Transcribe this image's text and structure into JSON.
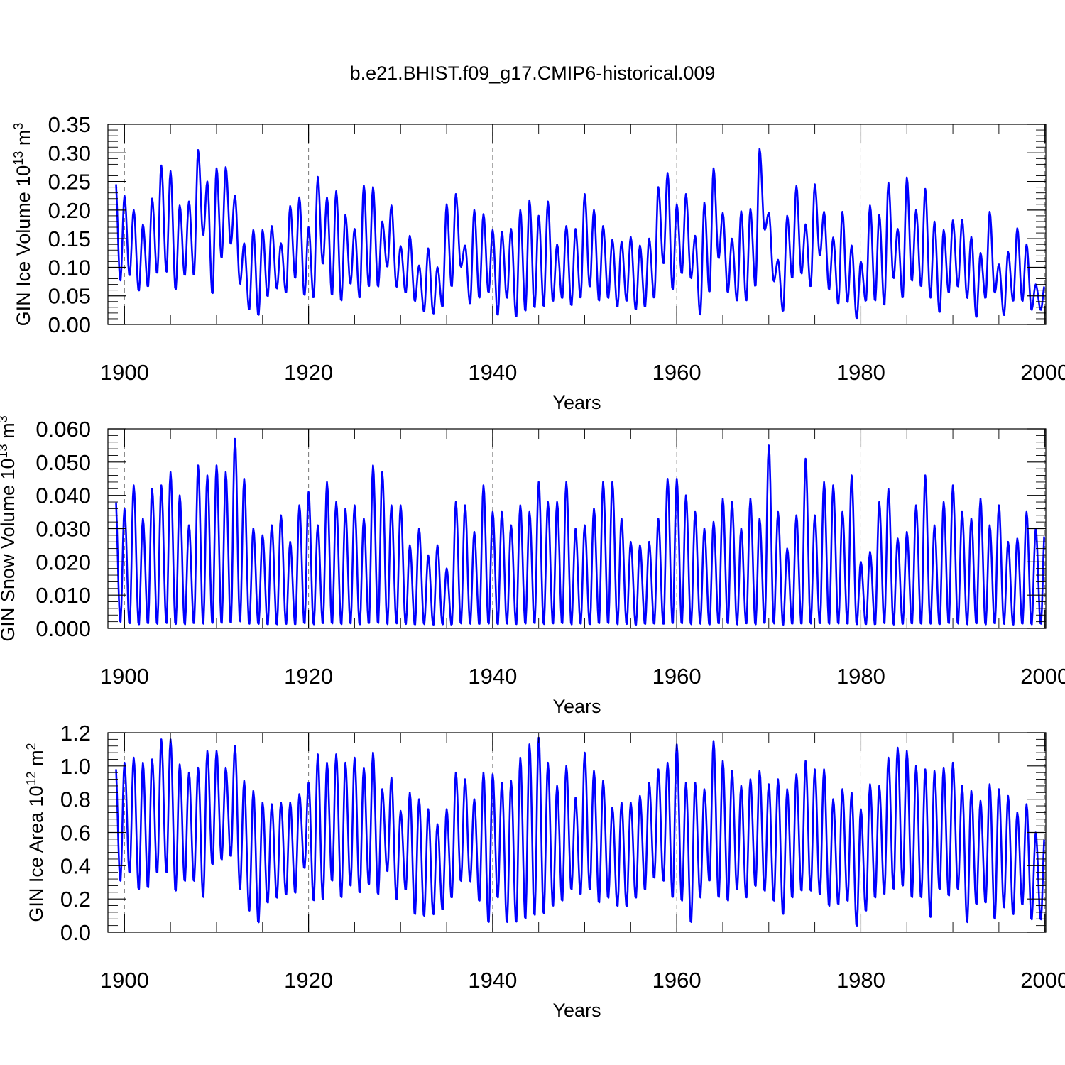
{
  "title": "b.e21.BHIST.f09_g17.CMIP6-historical.009",
  "colors": {
    "series": "#0000ff",
    "axes": "#000000",
    "grid": "#777777"
  },
  "chart_data": [
    {
      "type": "line",
      "ylabel_main": "GIN Ice Volume 10",
      "ylabel_exp1": "13",
      "ylabel_unit": " m",
      "ylabel_exp2": "3",
      "xlabel": "Years",
      "xlim": [
        1898.2,
        2000.1
      ],
      "x_ticks": [
        1900,
        1920,
        1940,
        1960,
        1980,
        2000
      ],
      "x_tick_labels": [
        "1900",
        "1920",
        "1940",
        "1960",
        "1980",
        "2000"
      ],
      "ylim": [
        0,
        0.35
      ],
      "y_ticks": [
        0,
        0.05,
        0.1,
        0.15,
        0.2,
        0.25,
        0.3,
        0.35
      ],
      "y_tick_labels": [
        "0.00",
        "0.05",
        "0.10",
        "0.15",
        "0.20",
        "0.25",
        "0.30",
        "0.35"
      ],
      "grid_x": [
        1900,
        1920,
        1940,
        1960,
        1980,
        2000
      ],
      "series": [
        {
          "name": "GIN Ice Volume",
          "annual_max": [
            0.255,
            0.225,
            0.2,
            0.175,
            0.22,
            0.278,
            0.268,
            0.208,
            0.215,
            0.305,
            0.25,
            0.273,
            0.275,
            0.225,
            0.142,
            0.165,
            0.165,
            0.172,
            0.142,
            0.207,
            0.222,
            0.17,
            0.258,
            0.222,
            0.233,
            0.192,
            0.167,
            0.243,
            0.24,
            0.18,
            0.208,
            0.137,
            0.155,
            0.103,
            0.133,
            0.1,
            0.21,
            0.228,
            0.138,
            0.2,
            0.193,
            0.165,
            0.162,
            0.167,
            0.2,
            0.217,
            0.19,
            0.215,
            0.14,
            0.172,
            0.167,
            0.228,
            0.2,
            0.172,
            0.148,
            0.145,
            0.153,
            0.138,
            0.15,
            0.24,
            0.265,
            0.21,
            0.228,
            0.155,
            0.213,
            0.273,
            0.195,
            0.15,
            0.198,
            0.202,
            0.307,
            0.195,
            0.113,
            0.19,
            0.242,
            0.175,
            0.245,
            0.197,
            0.152,
            0.197,
            0.138,
            0.11,
            0.208,
            0.192,
            0.248,
            0.167,
            0.257,
            0.2,
            0.237,
            0.18,
            0.165,
            0.182,
            0.183,
            0.153,
            0.125,
            0.197,
            0.105,
            0.127,
            0.168,
            0.14,
            0.07
          ],
          "annual_min": [
            0.075,
            0.085,
            0.058,
            0.065,
            0.088,
            0.09,
            0.06,
            0.085,
            0.085,
            0.155,
            0.052,
            0.115,
            0.14,
            0.07,
            0.025,
            0.015,
            0.048,
            0.062,
            0.055,
            0.08,
            0.05,
            0.045,
            0.105,
            0.05,
            0.04,
            0.07,
            0.045,
            0.065,
            0.065,
            0.1,
            0.065,
            0.055,
            0.04,
            0.022,
            0.018,
            0.03,
            0.065,
            0.1,
            0.035,
            0.045,
            0.055,
            0.015,
            0.045,
            0.012,
            0.022,
            0.028,
            0.03,
            0.04,
            0.045,
            0.032,
            0.045,
            0.065,
            0.04,
            0.045,
            0.03,
            0.04,
            0.025,
            0.03,
            0.045,
            0.105,
            0.06,
            0.088,
            0.08,
            0.015,
            0.055,
            0.115,
            0.055,
            0.04,
            0.04,
            0.065,
            0.165,
            0.075,
            0.022,
            0.08,
            0.088,
            0.065,
            0.12,
            0.06,
            0.035,
            0.038,
            0.01,
            0.04,
            0.04,
            0.032,
            0.08,
            0.045,
            0.075,
            0.065,
            0.045,
            0.02,
            0.055,
            0.065,
            0.045,
            0.012,
            0.045,
            0.055,
            0.015,
            0.04,
            0.04,
            0.025,
            0.025
          ]
        }
      ]
    },
    {
      "type": "line",
      "ylabel_main": "GIN Snow Volume 10",
      "ylabel_exp1": "13",
      "ylabel_unit": " m",
      "ylabel_exp2": "3",
      "xlabel": "Years",
      "xlim": [
        1898.2,
        2000.1
      ],
      "x_ticks": [
        1900,
        1920,
        1940,
        1960,
        1980,
        2000
      ],
      "x_tick_labels": [
        "1900",
        "1920",
        "1940",
        "1960",
        "1980",
        "2000"
      ],
      "ylim": [
        0,
        0.06
      ],
      "y_ticks": [
        0,
        0.01,
        0.02,
        0.03,
        0.04,
        0.05,
        0.06
      ],
      "y_tick_labels": [
        "0.000",
        "0.010",
        "0.020",
        "0.030",
        "0.040",
        "0.050",
        "0.060"
      ],
      "grid_x": [
        1900,
        1920,
        1940,
        1960,
        1980,
        2000
      ],
      "series": [
        {
          "name": "GIN Snow Volume",
          "annual_max": [
            0.04,
            0.036,
            0.043,
            0.033,
            0.042,
            0.043,
            0.047,
            0.04,
            0.031,
            0.049,
            0.046,
            0.049,
            0.047,
            0.057,
            0.045,
            0.03,
            0.028,
            0.031,
            0.034,
            0.026,
            0.037,
            0.041,
            0.031,
            0.044,
            0.038,
            0.036,
            0.037,
            0.033,
            0.049,
            0.047,
            0.037,
            0.037,
            0.025,
            0.03,
            0.022,
            0.025,
            0.018,
            0.038,
            0.037,
            0.029,
            0.043,
            0.035,
            0.035,
            0.031,
            0.037,
            0.035,
            0.044,
            0.038,
            0.038,
            0.044,
            0.03,
            0.031,
            0.036,
            0.044,
            0.044,
            0.033,
            0.026,
            0.025,
            0.026,
            0.033,
            0.045,
            0.045,
            0.04,
            0.035,
            0.03,
            0.032,
            0.039,
            0.038,
            0.03,
            0.039,
            0.033,
            0.055,
            0.035,
            0.024,
            0.034,
            0.051,
            0.034,
            0.044,
            0.043,
            0.035,
            0.046,
            0.02,
            0.023,
            0.038,
            0.042,
            0.027,
            0.029,
            0.037,
            0.046,
            0.031,
            0.038,
            0.043,
            0.035,
            0.033,
            0.039,
            0.031,
            0.037,
            0.026,
            0.027,
            0.035,
            0.03
          ],
          "annual_min": [
            0.0015,
            0.001,
            0.0008,
            0.001,
            0.0008,
            0.001,
            0.0008,
            0.0008,
            0.001,
            0.0008,
            0.001,
            0.001,
            0.001,
            0.0015,
            0.001,
            0.001,
            0.0008,
            0.0008,
            0.001,
            0.0008,
            0.001,
            0.0008,
            0.001,
            0.001,
            0.0008,
            0.001,
            0.0008,
            0.001,
            0.001,
            0.0008,
            0.001,
            0.001,
            0.0008,
            0.001,
            0.0008,
            0.001,
            0.0008,
            0.001,
            0.001,
            0.0008,
            0.001,
            0.0008,
            0.001,
            0.0008,
            0.001,
            0.001,
            0.0008,
            0.001,
            0.001,
            0.0008,
            0.001,
            0.0008,
            0.001,
            0.001,
            0.0008,
            0.001,
            0.0008,
            0.001,
            0.001,
            0.0008,
            0.001,
            0.001,
            0.0008,
            0.001,
            0.0008,
            0.001,
            0.001,
            0.0008,
            0.001,
            0.0008,
            0.001,
            0.001,
            0.0008,
            0.001,
            0.0008,
            0.001,
            0.001,
            0.0008,
            0.001,
            0.0008,
            0.001,
            0.001,
            0.0008,
            0.001,
            0.0008,
            0.001,
            0.001,
            0.0008,
            0.001,
            0.0008,
            0.001,
            0.001,
            0.0008,
            0.001,
            0.0008,
            0.001,
            0.001,
            0.0008,
            0.001,
            0.0008,
            0.001
          ]
        }
      ]
    },
    {
      "type": "line",
      "ylabel_main": "GIN Ice Area 10",
      "ylabel_exp1": "12",
      "ylabel_unit": " m",
      "ylabel_exp2": "2",
      "xlabel": "Years",
      "xlim": [
        1898.2,
        2000.1
      ],
      "x_ticks": [
        1900,
        1920,
        1940,
        1960,
        1980,
        2000
      ],
      "x_tick_labels": [
        "1900",
        "1920",
        "1940",
        "1960",
        "1980",
        "2000"
      ],
      "ylim": [
        0,
        1.2
      ],
      "y_ticks": [
        0,
        0.2,
        0.4,
        0.6,
        0.8,
        1.0,
        1.2
      ],
      "y_tick_labels": [
        "0.0",
        "0.2",
        "0.4",
        "0.6",
        "0.8",
        "1.0",
        "1.2"
      ],
      "grid_x": [
        1900,
        1920,
        1940,
        1960,
        1980,
        2000
      ],
      "series": [
        {
          "name": "GIN Ice Area",
          "annual_max": [
            1.02,
            1.02,
            1.05,
            1.02,
            1.04,
            1.16,
            1.16,
            1.01,
            0.96,
            0.99,
            1.09,
            1.09,
            0.99,
            1.12,
            0.91,
            0.85,
            0.78,
            0.77,
            0.78,
            0.78,
            0.83,
            0.9,
            1.07,
            1.02,
            1.07,
            1.02,
            1.05,
            0.99,
            1.08,
            0.86,
            0.93,
            0.73,
            0.84,
            0.8,
            0.74,
            0.65,
            0.74,
            0.96,
            0.92,
            0.8,
            0.96,
            0.95,
            0.9,
            0.91,
            1.05,
            1.13,
            1.17,
            1.02,
            0.88,
            1.0,
            0.81,
            1.08,
            0.97,
            0.91,
            0.75,
            0.78,
            0.78,
            0.82,
            0.9,
            0.98,
            1.02,
            1.13,
            0.9,
            0.9,
            0.86,
            1.15,
            1.03,
            0.97,
            0.88,
            0.92,
            0.97,
            0.89,
            0.92,
            0.86,
            0.95,
            1.03,
            0.98,
            0.98,
            0.8,
            0.86,
            0.84,
            0.74,
            0.89,
            0.88,
            1.05,
            1.11,
            1.09,
            1.0,
            0.98,
            0.97,
            0.99,
            1.02,
            0.88,
            0.85,
            0.79,
            0.89,
            0.86,
            0.82,
            0.72,
            0.77,
            0.6
          ],
          "annual_min": [
            0.3,
            0.35,
            0.25,
            0.26,
            0.35,
            0.35,
            0.24,
            0.3,
            0.3,
            0.2,
            0.4,
            0.43,
            0.45,
            0.25,
            0.12,
            0.05,
            0.17,
            0.2,
            0.22,
            0.23,
            0.38,
            0.18,
            0.19,
            0.3,
            0.2,
            0.27,
            0.23,
            0.28,
            0.22,
            0.36,
            0.19,
            0.25,
            0.1,
            0.09,
            0.1,
            0.13,
            0.2,
            0.3,
            0.3,
            0.18,
            0.05,
            0.2,
            0.05,
            0.05,
            0.07,
            0.09,
            0.1,
            0.15,
            0.18,
            0.25,
            0.22,
            0.25,
            0.17,
            0.2,
            0.15,
            0.15,
            0.2,
            0.25,
            0.32,
            0.3,
            0.2,
            0.18,
            0.05,
            0.2,
            0.3,
            0.2,
            0.18,
            0.25,
            0.2,
            0.27,
            0.24,
            0.18,
            0.1,
            0.2,
            0.24,
            0.24,
            0.22,
            0.15,
            0.16,
            0.18,
            0.03,
            0.12,
            0.2,
            0.22,
            0.25,
            0.27,
            0.2,
            0.2,
            0.08,
            0.25,
            0.21,
            0.25,
            0.05,
            0.16,
            0.17,
            0.07,
            0.14,
            0.1,
            0.16,
            0.07,
            0.07
          ]
        }
      ]
    }
  ]
}
